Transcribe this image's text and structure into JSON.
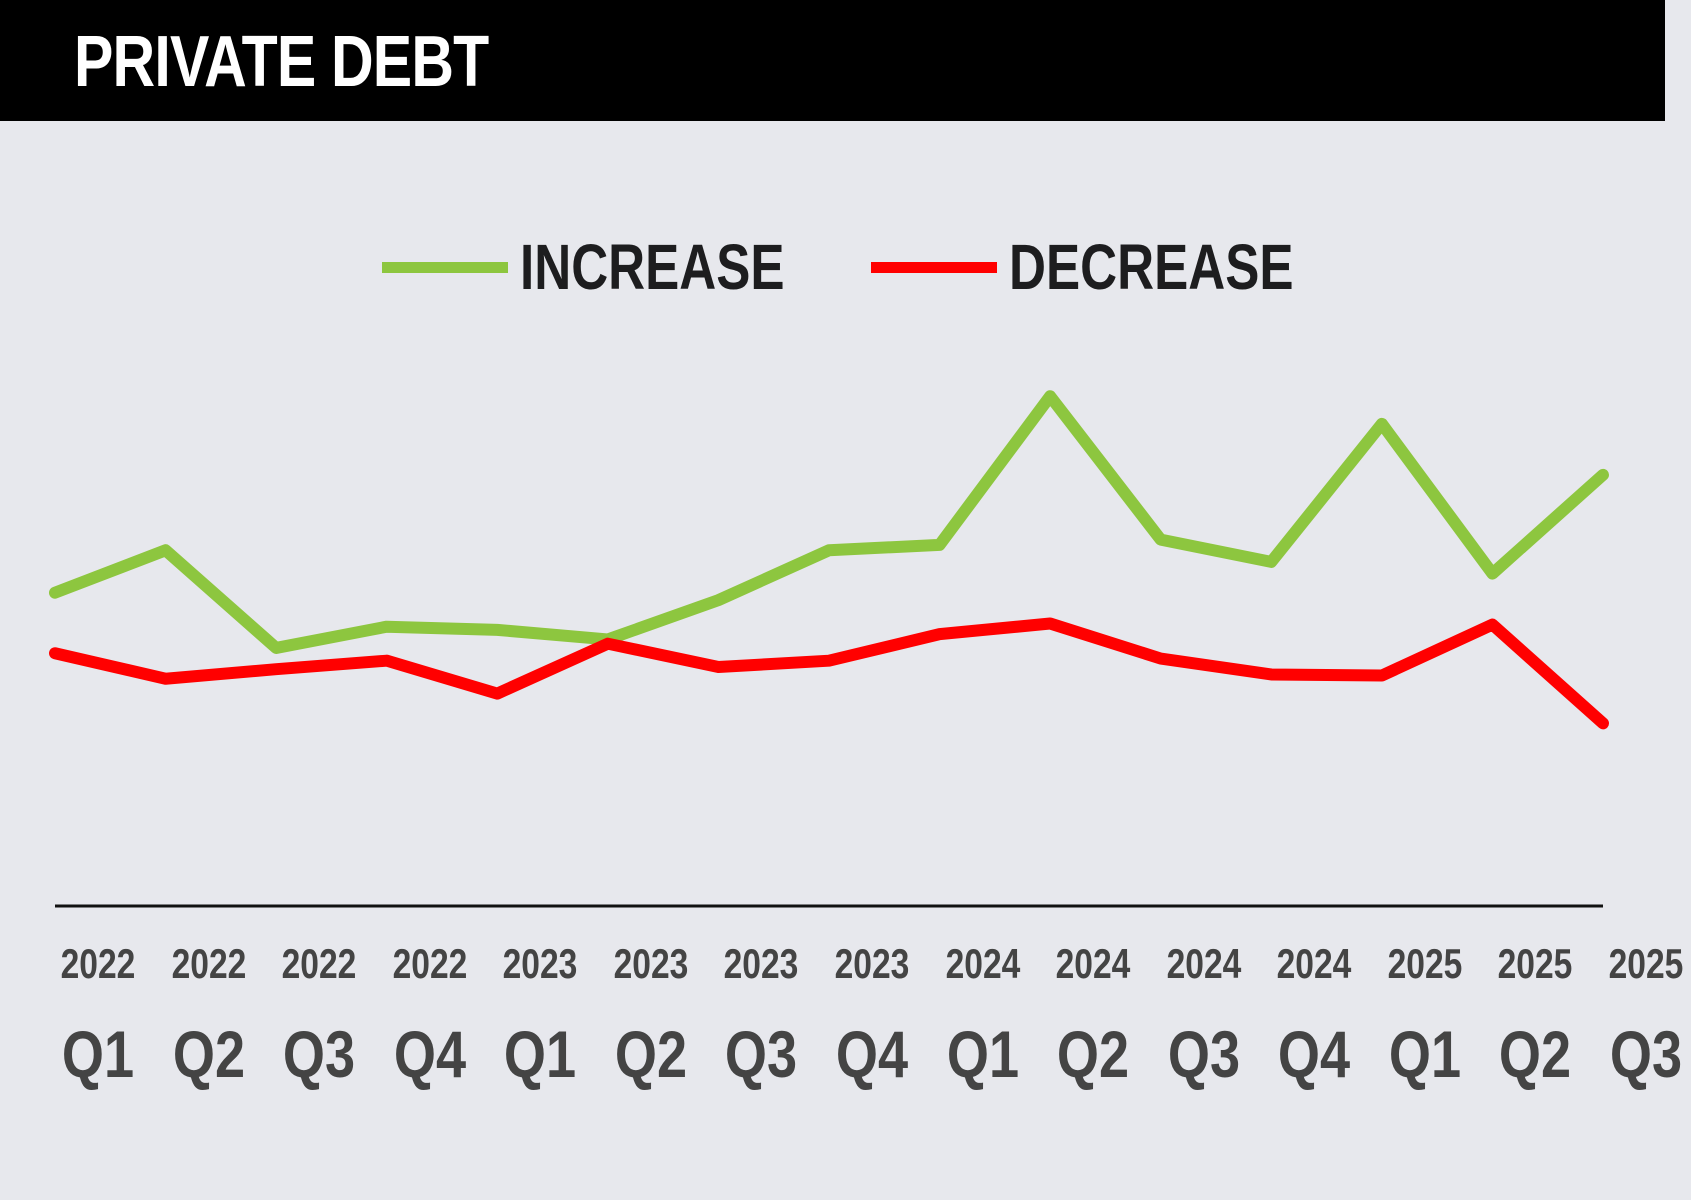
{
  "header": {
    "title": "PRIVATE DEBT"
  },
  "chart_data": {
    "type": "line",
    "title": "PRIVATE DEBT",
    "xlabel": "",
    "ylabel": "",
    "note": "No y-axis shown; values are relative estimates",
    "ylim": [
      0,
      50
    ],
    "grid": false,
    "legend_position": "top-center",
    "categories": [
      {
        "year": "2022",
        "quarter": "Q1"
      },
      {
        "year": "2022",
        "quarter": "Q2"
      },
      {
        "year": "2022",
        "quarter": "Q3"
      },
      {
        "year": "2022",
        "quarter": "Q4"
      },
      {
        "year": "2023",
        "quarter": "Q1"
      },
      {
        "year": "2023",
        "quarter": "Q2"
      },
      {
        "year": "2023",
        "quarter": "Q3"
      },
      {
        "year": "2023",
        "quarter": "Q4"
      },
      {
        "year": "2024",
        "quarter": "Q1"
      },
      {
        "year": "2024",
        "quarter": "Q2"
      },
      {
        "year": "2024",
        "quarter": "Q3"
      },
      {
        "year": "2024",
        "quarter": "Q4"
      },
      {
        "year": "2025",
        "quarter": "Q1"
      },
      {
        "year": "2025",
        "quarter": "Q2"
      },
      {
        "year": "2025",
        "quarter": "Q3"
      }
    ],
    "series": [
      {
        "name": "INCREASE",
        "color": "#8dc63f",
        "values": [
          29.5,
          33.5,
          24.3,
          26.3,
          26.0,
          25.1,
          28.8,
          33.5,
          34.0,
          48.0,
          34.5,
          32.4,
          45.4,
          31.3,
          40.6
        ]
      },
      {
        "name": "DECREASE",
        "color": "#ff0000",
        "values": [
          23.8,
          21.4,
          22.3,
          23.1,
          20.0,
          24.7,
          22.5,
          23.1,
          25.6,
          26.6,
          23.3,
          21.8,
          21.7,
          26.5,
          17.2
        ]
      }
    ]
  }
}
